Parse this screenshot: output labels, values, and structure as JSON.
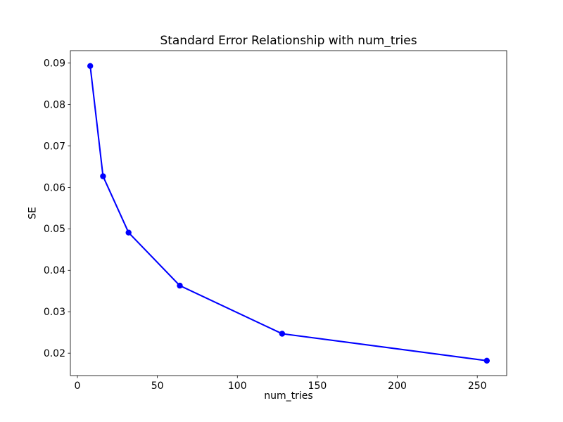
{
  "figure": {
    "background": "#ffffff",
    "spine_color": "#000000",
    "text_color": "#000000"
  },
  "chart_data": {
    "type": "line",
    "title": "Standard Error Relationship with num_tries",
    "xlabel": "num_tries",
    "ylabel": "SE",
    "x": [
      8,
      16,
      32,
      64,
      128,
      256
    ],
    "y": [
      0.0893,
      0.0627,
      0.0491,
      0.0363,
      0.0247,
      0.0182
    ],
    "line_color": "#0000ff",
    "marker": "circle",
    "marker_color": "#0000ff",
    "xlim": [
      -4.4,
      268.4
    ],
    "ylim": [
      0.0146,
      0.093
    ],
    "xticks": [
      0,
      50,
      100,
      150,
      200,
      250
    ],
    "xtick_labels": [
      "0",
      "50",
      "100",
      "150",
      "200",
      "250"
    ],
    "yticks": [
      0.02,
      0.03,
      0.04,
      0.05,
      0.06,
      0.07,
      0.08,
      0.09
    ],
    "ytick_labels": [
      "0.02",
      "0.03",
      "0.04",
      "0.05",
      "0.06",
      "0.07",
      "0.08",
      "0.09"
    ],
    "grid": false,
    "legend_position": "none"
  }
}
